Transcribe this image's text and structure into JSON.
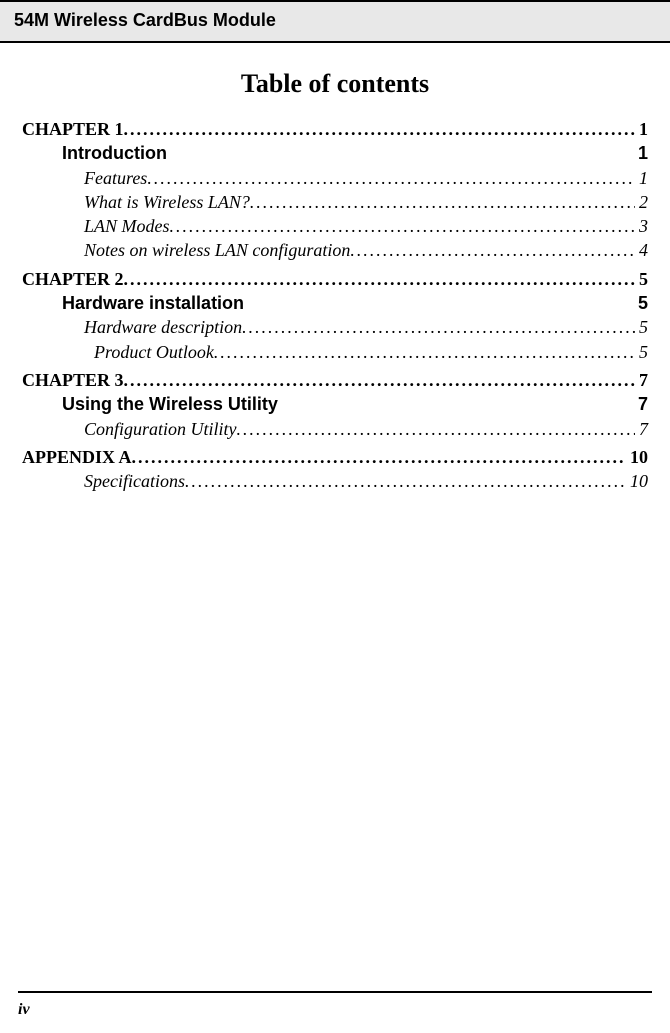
{
  "header": {
    "title": "54M Wireless CardBus Module"
  },
  "toc": {
    "title": "Table of contents",
    "entries": [
      {
        "level": "chapter",
        "label": "CHAPTER 1",
        "page": "1",
        "dots": true
      },
      {
        "level": "section",
        "label": "Introduction",
        "page": "1",
        "dots": false
      },
      {
        "level": "sub",
        "label": "Features",
        "page": "1",
        "dots": true
      },
      {
        "level": "sub",
        "label": "What is Wireless LAN?",
        "page": "2",
        "dots": true
      },
      {
        "level": "sub",
        "label": "LAN Modes",
        "page": "3",
        "dots": true
      },
      {
        "level": "sub",
        "label": "Notes on wireless LAN configuration",
        "page": "4",
        "dots": true
      },
      {
        "level": "chapter",
        "label": "CHAPTER 2",
        "page": "5",
        "dots": true
      },
      {
        "level": "section",
        "label": "Hardware installation",
        "page": "5",
        "dots": false
      },
      {
        "level": "sub",
        "label": "Hardware description",
        "page": "5",
        "dots": true
      },
      {
        "level": "subsub",
        "label": "Product Outlook",
        "page": "5",
        "dots": true
      },
      {
        "level": "chapter",
        "label": "CHAPTER 3",
        "page": "7",
        "dots": true
      },
      {
        "level": "section",
        "label": "Using the Wireless Utility",
        "page": "7",
        "dots": false
      },
      {
        "level": "sub",
        "label": "Configuration Utility",
        "page": "7",
        "dots": true
      },
      {
        "level": "chapter",
        "label": "APPENDIX A",
        "page": "10",
        "dots": true
      },
      {
        "level": "sub",
        "label": "Specifications",
        "page": "10",
        "dots": true
      }
    ]
  },
  "footer": {
    "page_number": "iv"
  }
}
